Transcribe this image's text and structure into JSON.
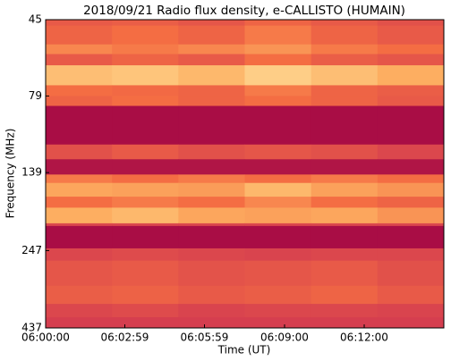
{
  "chart_data": {
    "type": "heatmap",
    "title": "2018/09/21  Radio flux density, e-CALLISTO (HUMAIN)",
    "xlabel": "Time (UT)",
    "ylabel": "Frequency (MHz)",
    "x_edges": [
      0,
      150,
      300,
      450,
      600,
      750,
      900
    ],
    "y_edges": [
      45,
      47,
      54,
      58,
      63,
      73,
      79,
      85,
      113,
      126,
      141,
      150,
      166,
      180,
      202,
      206,
      243,
      266,
      320,
      366,
      404,
      437
    ],
    "z": [
      [
        0.4,
        0.42,
        0.38,
        0.45,
        0.4,
        0.35
      ],
      [
        0.45,
        0.5,
        0.45,
        0.55,
        0.45,
        0.4
      ],
      [
        0.6,
        0.55,
        0.6,
        0.65,
        0.55,
        0.5
      ],
      [
        0.4,
        0.45,
        0.4,
        0.5,
        0.42,
        0.38
      ],
      [
        0.8,
        0.82,
        0.78,
        0.85,
        0.8,
        0.75
      ],
      [
        0.5,
        0.48,
        0.45,
        0.55,
        0.45,
        0.42
      ],
      [
        0.45,
        0.5,
        0.45,
        0.5,
        0.45,
        0.4
      ],
      [
        0.05,
        0.05,
        0.05,
        0.05,
        0.05,
        0.05
      ],
      [
        0.35,
        0.4,
        0.35,
        0.38,
        0.35,
        0.3
      ],
      [
        0.08,
        0.08,
        0.08,
        0.08,
        0.08,
        0.08
      ],
      [
        0.55,
        0.5,
        0.55,
        0.5,
        0.55,
        0.5
      ],
      [
        0.72,
        0.7,
        0.68,
        0.78,
        0.7,
        0.65
      ],
      [
        0.5,
        0.55,
        0.5,
        0.6,
        0.5,
        0.45
      ],
      [
        0.75,
        0.78,
        0.72,
        0.7,
        0.72,
        0.65
      ],
      [
        0.3,
        0.3,
        0.3,
        0.3,
        0.3,
        0.3
      ],
      [
        0.05,
        0.05,
        0.05,
        0.05,
        0.05,
        0.05
      ],
      [
        0.3,
        0.32,
        0.3,
        0.28,
        0.3,
        0.3
      ],
      [
        0.38,
        0.4,
        0.36,
        0.38,
        0.4,
        0.35
      ],
      [
        0.42,
        0.44,
        0.4,
        0.42,
        0.45,
        0.4
      ],
      [
        0.3,
        0.32,
        0.28,
        0.3,
        0.3,
        0.28
      ],
      [
        0.25,
        0.25,
        0.25,
        0.25,
        0.25,
        0.25
      ]
    ],
    "zlim": [
      0,
      1
    ],
    "colors": [
      "#9e0142",
      "#d53e4f",
      "#f46d43",
      "#fdae61",
      "#ffffbf"
    ],
    "xlim": [
      0,
      900
    ],
    "xticks": [
      {
        "value": 0,
        "label": "06:00:00"
      },
      {
        "value": 179,
        "label": "06:02:59"
      },
      {
        "value": 359,
        "label": "06:05:59"
      },
      {
        "value": 540,
        "label": "06:09:00"
      },
      {
        "value": 720,
        "label": "06:12:00"
      }
    ],
    "ylim": [
      437,
      45
    ],
    "yscale": "log",
    "yticks": [
      45,
      79,
      139,
      247,
      437
    ]
  }
}
